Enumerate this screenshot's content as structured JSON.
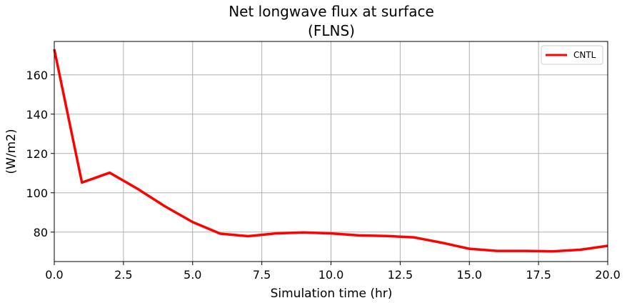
{
  "chart_data": {
    "type": "line",
    "title": "Net longwave flux at surface",
    "subtitle": "(FLNS)",
    "xlabel": "Simulation time (hr)",
    "ylabel": "(W/m2)",
    "xlim": [
      0,
      20
    ],
    "ylim": [
      65,
      177
    ],
    "xticks": [
      0,
      2.5,
      5,
      7.5,
      10,
      12.5,
      15,
      17.5,
      20
    ],
    "xtick_labels": [
      "0.0",
      "2.5",
      "5.0",
      "7.5",
      "10.0",
      "12.5",
      "15.0",
      "17.5",
      "20.0"
    ],
    "yticks": [
      80,
      100,
      120,
      140,
      160
    ],
    "ytick_labels": [
      "80",
      "100",
      "120",
      "140",
      "160"
    ],
    "grid": true,
    "legend_position": "top-right",
    "series": [
      {
        "name": "CNTL",
        "color": "#ff0000",
        "x": [
          0,
          1,
          2,
          3,
          4,
          5,
          6,
          7,
          8,
          9,
          10,
          11,
          12,
          13,
          14,
          15,
          16,
          17,
          18,
          19,
          20
        ],
        "values": [
          173,
          105.2,
          110.2,
          102.1,
          93.1,
          85.1,
          79.2,
          77.9,
          79.3,
          79.8,
          79.3,
          78.3,
          78.0,
          77.3,
          74.6,
          71.5,
          70.4,
          70.4,
          70.2,
          71.0,
          73.0
        ]
      }
    ]
  }
}
